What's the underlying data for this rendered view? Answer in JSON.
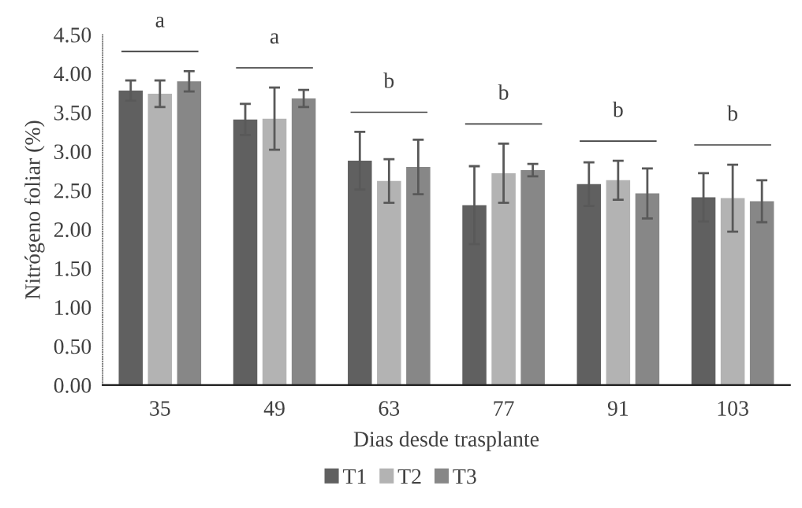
{
  "chart_data": {
    "type": "bar",
    "categories": [
      "35",
      "49",
      "63",
      "77",
      "91",
      "103"
    ],
    "series": [
      {
        "name": "T1",
        "color": "#606060",
        "values": [
          3.78,
          3.41,
          2.88,
          2.31,
          2.58,
          2.41
        ],
        "errors": [
          0.13,
          0.2,
          0.37,
          0.5,
          0.28,
          0.31
        ]
      },
      {
        "name": "T2",
        "color": "#b3b3b3",
        "values": [
          3.74,
          3.42,
          2.62,
          2.72,
          2.63,
          2.4
        ],
        "errors": [
          0.17,
          0.4,
          0.28,
          0.38,
          0.25,
          0.43
        ]
      },
      {
        "name": "T3",
        "color": "#878787",
        "values": [
          3.9,
          3.68,
          2.8,
          2.76,
          2.46,
          2.36
        ],
        "errors": [
          0.13,
          0.11,
          0.35,
          0.08,
          0.32,
          0.27
        ]
      }
    ],
    "xlabel": "Dias desde trasplante",
    "ylabel": "Nitrógeno foliar (%)",
    "ylim": [
      0,
      4.5
    ],
    "yticks": [
      {
        "value": 0,
        "label": "0.00"
      },
      {
        "value": 0.5,
        "label": "0.50"
      },
      {
        "value": 1,
        "label": "1.00"
      },
      {
        "value": 1.5,
        "label": "1.50"
      },
      {
        "value": 2,
        "label": "2.00"
      },
      {
        "value": 2.5,
        "label": "2.50"
      },
      {
        "value": 3,
        "label": "3.00"
      },
      {
        "value": 3.5,
        "label": "3.50"
      },
      {
        "value": 4,
        "label": "4.00"
      },
      {
        "value": 4.5,
        "label": "4.50"
      }
    ],
    "annotations": [
      "a",
      "a",
      "b",
      "b",
      "b",
      "b"
    ],
    "grid": false,
    "legend": "bottom"
  }
}
